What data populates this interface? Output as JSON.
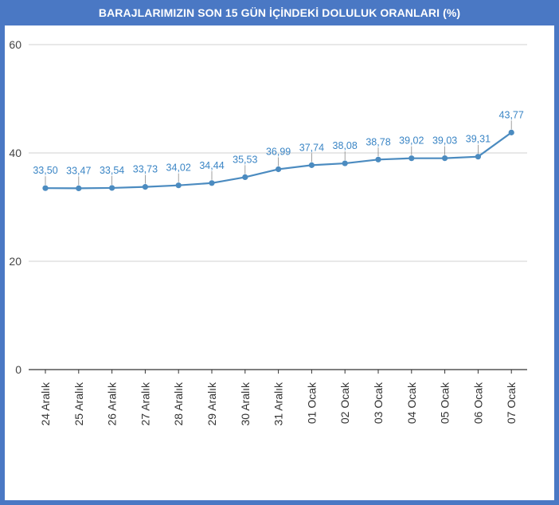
{
  "title": "BARAJLARIMIZIN SON 15 GÜN İÇİNDEKİ DOLULUK ORANLARI (%)",
  "colors": {
    "frame": "#4a78c4",
    "series": "#4b8bc0",
    "data_label": "#3a85c5",
    "grid": "#d0d0d0"
  },
  "chart_data": {
    "type": "line",
    "title": "BARAJLARIMIZIN SON 15 GÜN İÇİNDEKİ DOLULUK ORANLARI (%)",
    "xlabel": "",
    "ylabel": "",
    "categories": [
      "24 Aralık",
      "25 Aralık",
      "26 Aralık",
      "27 Aralık",
      "28 Aralık",
      "29 Aralık",
      "30 Aralık",
      "31 Aralık",
      "01 Ocak",
      "02 Ocak",
      "03 Ocak",
      "04 Ocak",
      "05 Ocak",
      "06 Ocak",
      "07 Ocak"
    ],
    "values": [
      33.5,
      33.47,
      33.54,
      33.73,
      34.02,
      34.44,
      35.53,
      36.99,
      37.74,
      38.08,
      38.78,
      39.02,
      39.03,
      39.31,
      43.77
    ],
    "data_labels": [
      "33,50",
      "33,47",
      "33,54",
      "33,73",
      "34,02",
      "34,44",
      "35,53",
      "36,99",
      "37,74",
      "38,08",
      "38,78",
      "39,02",
      "39,03",
      "39,31",
      "43,77"
    ],
    "ylim": [
      0,
      60
    ],
    "yticks": [
      0,
      20,
      40,
      60
    ],
    "ytick_labels": [
      "0",
      "20",
      "40",
      "60"
    ],
    "grid": true,
    "legend": "none",
    "x_tick_rotation": "vertical"
  }
}
